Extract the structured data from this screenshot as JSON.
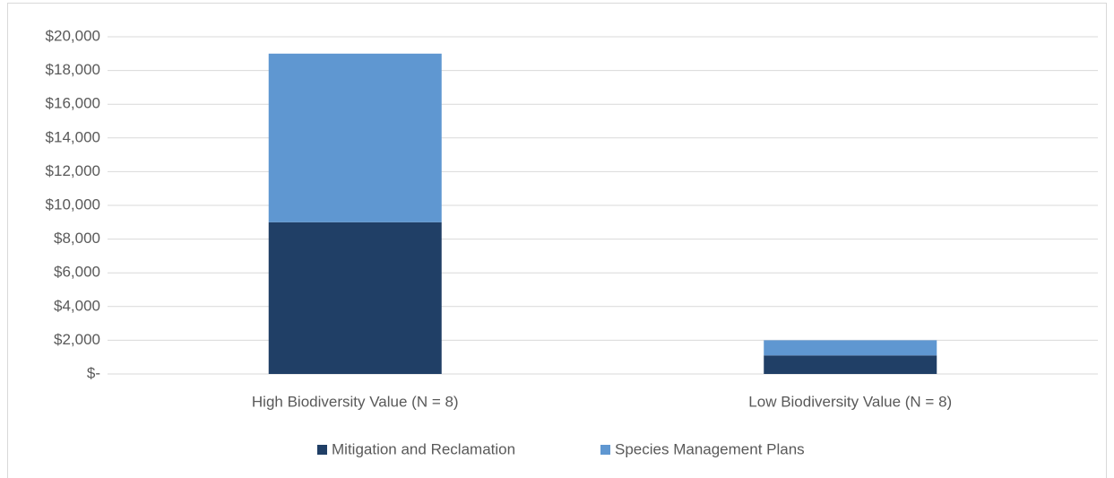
{
  "chart_data": {
    "type": "bar",
    "stacked": true,
    "categories": [
      "High Biodiversity Value (N = 8)",
      "Low Biodiversity Value (N = 8)"
    ],
    "series": [
      {
        "name": "Mitigation and Reclamation",
        "color": "#203f66",
        "values": [
          9000,
          1100
        ]
      },
      {
        "name": "Species Management Plans",
        "color": "#5f97d1",
        "values": [
          10000,
          900
        ]
      }
    ],
    "ylim": [
      0,
      20000
    ],
    "yticks": [
      {
        "value": 0,
        "label": "$-"
      },
      {
        "value": 2000,
        "label": "$2,000"
      },
      {
        "value": 4000,
        "label": "$4,000"
      },
      {
        "value": 6000,
        "label": "$6,000"
      },
      {
        "value": 8000,
        "label": "$8,000"
      },
      {
        "value": 10000,
        "label": "$10,000"
      },
      {
        "value": 12000,
        "label": "$12,000"
      },
      {
        "value": 14000,
        "label": "$14,000"
      },
      {
        "value": 16000,
        "label": "$16,000"
      },
      {
        "value": 18000,
        "label": "$18,000"
      },
      {
        "value": 20000,
        "label": "$20,000"
      }
    ],
    "grid": true,
    "legend": "bottom"
  }
}
